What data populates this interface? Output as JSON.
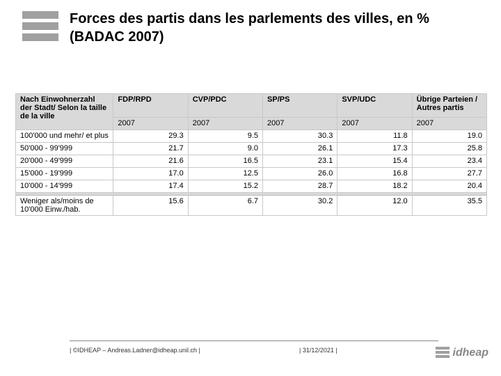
{
  "title": "Forces des partis dans les parlements des villes, en % (BADAC 2007)",
  "table": {
    "row_header_label": "Nach Einwohnerzahl der Stadt/\nSelon la taille de la ville",
    "columns": [
      {
        "party": "FDP/RPD",
        "year": "2007"
      },
      {
        "party": "CVP/PDC",
        "year": "2007"
      },
      {
        "party": "SP/PS",
        "year": "2007"
      },
      {
        "party": "SVP/UDC",
        "year": "2007"
      },
      {
        "party": "Übrige Parteien / Autres partis",
        "year": "2007"
      }
    ],
    "rows": [
      {
        "label": "100'000 und mehr/ et plus",
        "values": [
          "29.3",
          "9.5",
          "30.3",
          "11.8",
          "19.0"
        ]
      },
      {
        "label": "50'000 - 99'999",
        "values": [
          "21.7",
          "9.0",
          "26.1",
          "17.3",
          "25.8"
        ]
      },
      {
        "label": "20'000 - 49'999",
        "values": [
          "21.6",
          "16.5",
          "23.1",
          "15.4",
          "23.4"
        ]
      },
      {
        "label": "15'000 - 19'999",
        "values": [
          "17.0",
          "12.5",
          "26.0",
          "16.8",
          "27.7"
        ]
      },
      {
        "label": "10'000 - 14'999",
        "values": [
          "17.4",
          "15.2",
          "28.7",
          "18.2",
          "20.4"
        ]
      }
    ],
    "final_row": {
      "label": "Weniger als/moins de 10'000 Einw./hab.",
      "values": [
        "15.6",
        "6.7",
        "30.2",
        "12.0",
        "35.5"
      ]
    }
  },
  "footer": {
    "left": "| ©IDHEAP – Andreas.Ladner@idheap.unil.ch |",
    "date": "| 31/12/2021 |",
    "logo_text": "idheap"
  },
  "colors": {
    "header_bg": "#d9d9d9",
    "border": "#c8c8c8",
    "logo_gray": "#a0a0a0"
  }
}
